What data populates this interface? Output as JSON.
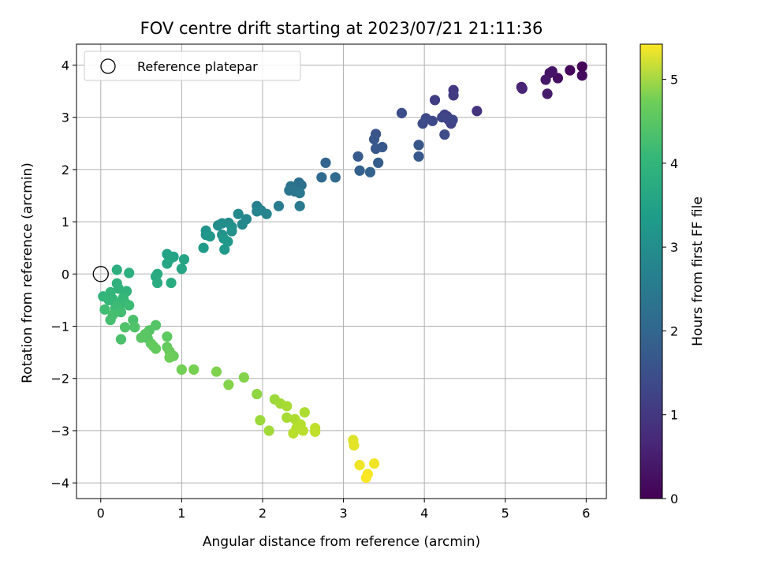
{
  "chart_data": {
    "type": "scatter",
    "title": "FOV centre drift starting at 2023/07/21 21:11:36",
    "xlabel": "Angular distance from reference (arcmin)",
    "ylabel": "Rotation from reference (arcmin)",
    "xlim": [
      -0.3,
      6.25
    ],
    "ylim": [
      -4.3,
      4.4
    ],
    "x_ticks": [
      0,
      1,
      2,
      3,
      4,
      5,
      6
    ],
    "y_ticks": [
      -4,
      -3,
      -2,
      -1,
      0,
      1,
      2,
      3,
      4
    ],
    "grid": true,
    "legend": {
      "position": "top-left",
      "entries": [
        "Reference platepar"
      ]
    },
    "reference_point": {
      "x": 0,
      "y": 0
    },
    "colorbar": {
      "label": "Hours from first FF file",
      "range": [
        0,
        5.42
      ],
      "ticks": [
        0,
        1,
        2,
        3,
        4,
        5
      ],
      "colormap": "viridis"
    },
    "points": [
      {
        "x": 5.95,
        "y": 3.97,
        "c": 0.05
      },
      {
        "x": 5.8,
        "y": 3.9,
        "c": 0.1
      },
      {
        "x": 5.95,
        "y": 3.8,
        "c": 0.15
      },
      {
        "x": 5.65,
        "y": 3.75,
        "c": 0.2
      },
      {
        "x": 5.55,
        "y": 3.85,
        "c": 0.25
      },
      {
        "x": 5.58,
        "y": 3.88,
        "c": 0.3
      },
      {
        "x": 5.5,
        "y": 3.72,
        "c": 0.35
      },
      {
        "x": 5.52,
        "y": 3.45,
        "c": 0.4
      },
      {
        "x": 5.2,
        "y": 3.58,
        "c": 0.5
      },
      {
        "x": 5.21,
        "y": 3.55,
        "c": 0.55
      },
      {
        "x": 4.65,
        "y": 3.12,
        "c": 0.8
      },
      {
        "x": 4.36,
        "y": 3.52,
        "c": 0.9
      },
      {
        "x": 4.36,
        "y": 3.42,
        "c": 0.95
      },
      {
        "x": 4.13,
        "y": 3.33,
        "c": 1.0
      },
      {
        "x": 4.25,
        "y": 3.05,
        "c": 1.05
      },
      {
        "x": 4.28,
        "y": 3.02,
        "c": 1.05
      },
      {
        "x": 4.3,
        "y": 2.95,
        "c": 1.1
      },
      {
        "x": 4.33,
        "y": 2.88,
        "c": 1.1
      },
      {
        "x": 4.35,
        "y": 2.95,
        "c": 1.15
      },
      {
        "x": 4.22,
        "y": 3.0,
        "c": 1.15
      },
      {
        "x": 4.1,
        "y": 2.93,
        "c": 1.2
      },
      {
        "x": 4.02,
        "y": 2.98,
        "c": 1.2
      },
      {
        "x": 3.98,
        "y": 2.88,
        "c": 1.25
      },
      {
        "x": 4.25,
        "y": 2.67,
        "c": 1.25
      },
      {
        "x": 3.72,
        "y": 3.08,
        "c": 1.3
      },
      {
        "x": 3.4,
        "y": 2.68,
        "c": 1.4
      },
      {
        "x": 3.38,
        "y": 2.58,
        "c": 1.45
      },
      {
        "x": 3.48,
        "y": 2.43,
        "c": 1.5
      },
      {
        "x": 3.4,
        "y": 2.4,
        "c": 1.5
      },
      {
        "x": 3.93,
        "y": 2.47,
        "c": 1.45
      },
      {
        "x": 3.93,
        "y": 2.25,
        "c": 1.5
      },
      {
        "x": 3.18,
        "y": 2.25,
        "c": 1.55
      },
      {
        "x": 3.43,
        "y": 2.13,
        "c": 1.6
      },
      {
        "x": 3.2,
        "y": 1.98,
        "c": 1.65
      },
      {
        "x": 3.33,
        "y": 1.95,
        "c": 1.7
      },
      {
        "x": 2.78,
        "y": 2.13,
        "c": 1.75
      },
      {
        "x": 2.73,
        "y": 1.85,
        "c": 1.85
      },
      {
        "x": 2.9,
        "y": 1.85,
        "c": 1.85
      },
      {
        "x": 2.45,
        "y": 1.75,
        "c": 2.0
      },
      {
        "x": 2.48,
        "y": 1.7,
        "c": 2.0
      },
      {
        "x": 2.35,
        "y": 1.68,
        "c": 2.05
      },
      {
        "x": 2.33,
        "y": 1.6,
        "c": 2.1
      },
      {
        "x": 2.4,
        "y": 1.58,
        "c": 2.1
      },
      {
        "x": 2.46,
        "y": 1.55,
        "c": 2.15
      },
      {
        "x": 2.46,
        "y": 1.3,
        "c": 2.2
      },
      {
        "x": 2.2,
        "y": 1.3,
        "c": 2.25
      },
      {
        "x": 1.93,
        "y": 1.3,
        "c": 2.35
      },
      {
        "x": 1.98,
        "y": 1.22,
        "c": 2.4
      },
      {
        "x": 2.05,
        "y": 1.15,
        "c": 2.45
      },
      {
        "x": 1.93,
        "y": 1.2,
        "c": 2.45
      },
      {
        "x": 1.8,
        "y": 1.05,
        "c": 2.5
      },
      {
        "x": 1.75,
        "y": 0.95,
        "c": 2.55
      },
      {
        "x": 1.7,
        "y": 1.15,
        "c": 2.55
      },
      {
        "x": 1.58,
        "y": 0.98,
        "c": 2.6
      },
      {
        "x": 1.5,
        "y": 0.97,
        "c": 2.65
      },
      {
        "x": 1.45,
        "y": 0.93,
        "c": 2.65
      },
      {
        "x": 1.62,
        "y": 0.9,
        "c": 2.7
      },
      {
        "x": 1.62,
        "y": 0.82,
        "c": 2.75
      },
      {
        "x": 1.5,
        "y": 0.75,
        "c": 2.75
      },
      {
        "x": 1.3,
        "y": 0.83,
        "c": 2.8
      },
      {
        "x": 1.3,
        "y": 0.75,
        "c": 2.8
      },
      {
        "x": 1.35,
        "y": 0.72,
        "c": 2.85
      },
      {
        "x": 1.52,
        "y": 0.68,
        "c": 2.85
      },
      {
        "x": 1.57,
        "y": 0.62,
        "c": 2.9
      },
      {
        "x": 1.53,
        "y": 0.47,
        "c": 2.9
      },
      {
        "x": 1.27,
        "y": 0.5,
        "c": 2.95
      },
      {
        "x": 0.82,
        "y": 0.38,
        "c": 3.1
      },
      {
        "x": 0.9,
        "y": 0.33,
        "c": 3.1
      },
      {
        "x": 1.03,
        "y": 0.28,
        "c": 3.15
      },
      {
        "x": 0.85,
        "y": 0.28,
        "c": 3.15
      },
      {
        "x": 0.82,
        "y": 0.2,
        "c": 3.2
      },
      {
        "x": 1.0,
        "y": 0.1,
        "c": 3.2
      },
      {
        "x": 0.7,
        "y": 0.0,
        "c": 3.3
      },
      {
        "x": 0.68,
        "y": -0.05,
        "c": 3.3
      },
      {
        "x": 0.7,
        "y": -0.17,
        "c": 3.35
      },
      {
        "x": 0.87,
        "y": -0.17,
        "c": 3.35
      },
      {
        "x": 0.2,
        "y": 0.08,
        "c": 3.4
      },
      {
        "x": 0.35,
        "y": 0.02,
        "c": 3.4
      },
      {
        "x": 0.2,
        "y": -0.18,
        "c": 3.45
      },
      {
        "x": 0.22,
        "y": -0.28,
        "c": 3.5
      },
      {
        "x": 0.32,
        "y": -0.33,
        "c": 3.5
      },
      {
        "x": 0.12,
        "y": -0.35,
        "c": 3.55
      },
      {
        "x": 0.03,
        "y": -0.43,
        "c": 3.55
      },
      {
        "x": 0.28,
        "y": -0.45,
        "c": 3.6
      },
      {
        "x": 0.15,
        "y": -0.48,
        "c": 3.6
      },
      {
        "x": 0.1,
        "y": -0.5,
        "c": 3.6
      },
      {
        "x": 0.22,
        "y": -0.55,
        "c": 3.65
      },
      {
        "x": 0.3,
        "y": -0.55,
        "c": 3.65
      },
      {
        "x": 0.35,
        "y": -0.6,
        "c": 3.7
      },
      {
        "x": 0.2,
        "y": -0.62,
        "c": 3.7
      },
      {
        "x": 0.18,
        "y": -0.65,
        "c": 3.7
      },
      {
        "x": 0.05,
        "y": -0.68,
        "c": 3.75
      },
      {
        "x": 0.25,
        "y": -0.73,
        "c": 3.75
      },
      {
        "x": 0.15,
        "y": -0.78,
        "c": 3.8
      },
      {
        "x": 0.12,
        "y": -0.88,
        "c": 3.8
      },
      {
        "x": 0.4,
        "y": -0.88,
        "c": 3.85
      },
      {
        "x": 0.3,
        "y": -1.02,
        "c": 3.9
      },
      {
        "x": 0.42,
        "y": -1.02,
        "c": 3.9
      },
      {
        "x": 0.68,
        "y": -0.98,
        "c": 3.95
      },
      {
        "x": 0.6,
        "y": -1.08,
        "c": 3.95
      },
      {
        "x": 0.55,
        "y": -1.15,
        "c": 4.0
      },
      {
        "x": 0.5,
        "y": -1.22,
        "c": 4.0
      },
      {
        "x": 0.58,
        "y": -1.23,
        "c": 4.0
      },
      {
        "x": 0.25,
        "y": -1.25,
        "c": 3.85
      },
      {
        "x": 0.82,
        "y": -1.2,
        "c": 4.05
      },
      {
        "x": 0.62,
        "y": -1.33,
        "c": 4.05
      },
      {
        "x": 0.65,
        "y": -1.38,
        "c": 4.1
      },
      {
        "x": 0.68,
        "y": -1.43,
        "c": 4.1
      },
      {
        "x": 0.82,
        "y": -1.4,
        "c": 4.1
      },
      {
        "x": 0.85,
        "y": -1.48,
        "c": 4.15
      },
      {
        "x": 0.9,
        "y": -1.57,
        "c": 4.15
      },
      {
        "x": 0.85,
        "y": -1.6,
        "c": 4.2
      },
      {
        "x": 1.0,
        "y": -1.83,
        "c": 4.25
      },
      {
        "x": 1.15,
        "y": -1.83,
        "c": 4.3
      },
      {
        "x": 1.43,
        "y": -1.87,
        "c": 4.35
      },
      {
        "x": 1.58,
        "y": -2.12,
        "c": 4.4
      },
      {
        "x": 1.77,
        "y": -1.98,
        "c": 4.4
      },
      {
        "x": 1.93,
        "y": -2.3,
        "c": 4.5
      },
      {
        "x": 2.15,
        "y": -2.4,
        "c": 4.6
      },
      {
        "x": 2.22,
        "y": -2.48,
        "c": 4.65
      },
      {
        "x": 2.3,
        "y": -2.53,
        "c": 4.7
      },
      {
        "x": 2.52,
        "y": -2.65,
        "c": 4.75
      },
      {
        "x": 1.97,
        "y": -2.8,
        "c": 4.6
      },
      {
        "x": 2.08,
        "y": -3.0,
        "c": 4.65
      },
      {
        "x": 2.3,
        "y": -2.75,
        "c": 4.7
      },
      {
        "x": 2.4,
        "y": -2.78,
        "c": 4.75
      },
      {
        "x": 2.47,
        "y": -2.88,
        "c": 4.8
      },
      {
        "x": 2.42,
        "y": -2.95,
        "c": 4.8
      },
      {
        "x": 2.38,
        "y": -3.05,
        "c": 4.85
      },
      {
        "x": 2.5,
        "y": -3.0,
        "c": 4.85
      },
      {
        "x": 2.65,
        "y": -2.95,
        "c": 4.9
      },
      {
        "x": 2.65,
        "y": -3.02,
        "c": 4.9
      },
      {
        "x": 3.12,
        "y": -3.18,
        "c": 5.15
      },
      {
        "x": 3.13,
        "y": -3.28,
        "c": 5.2
      },
      {
        "x": 3.2,
        "y": -3.66,
        "c": 5.3
      },
      {
        "x": 3.38,
        "y": -3.63,
        "c": 5.3
      },
      {
        "x": 3.3,
        "y": -3.83,
        "c": 5.35
      },
      {
        "x": 3.28,
        "y": -3.9,
        "c": 5.4
      }
    ]
  }
}
